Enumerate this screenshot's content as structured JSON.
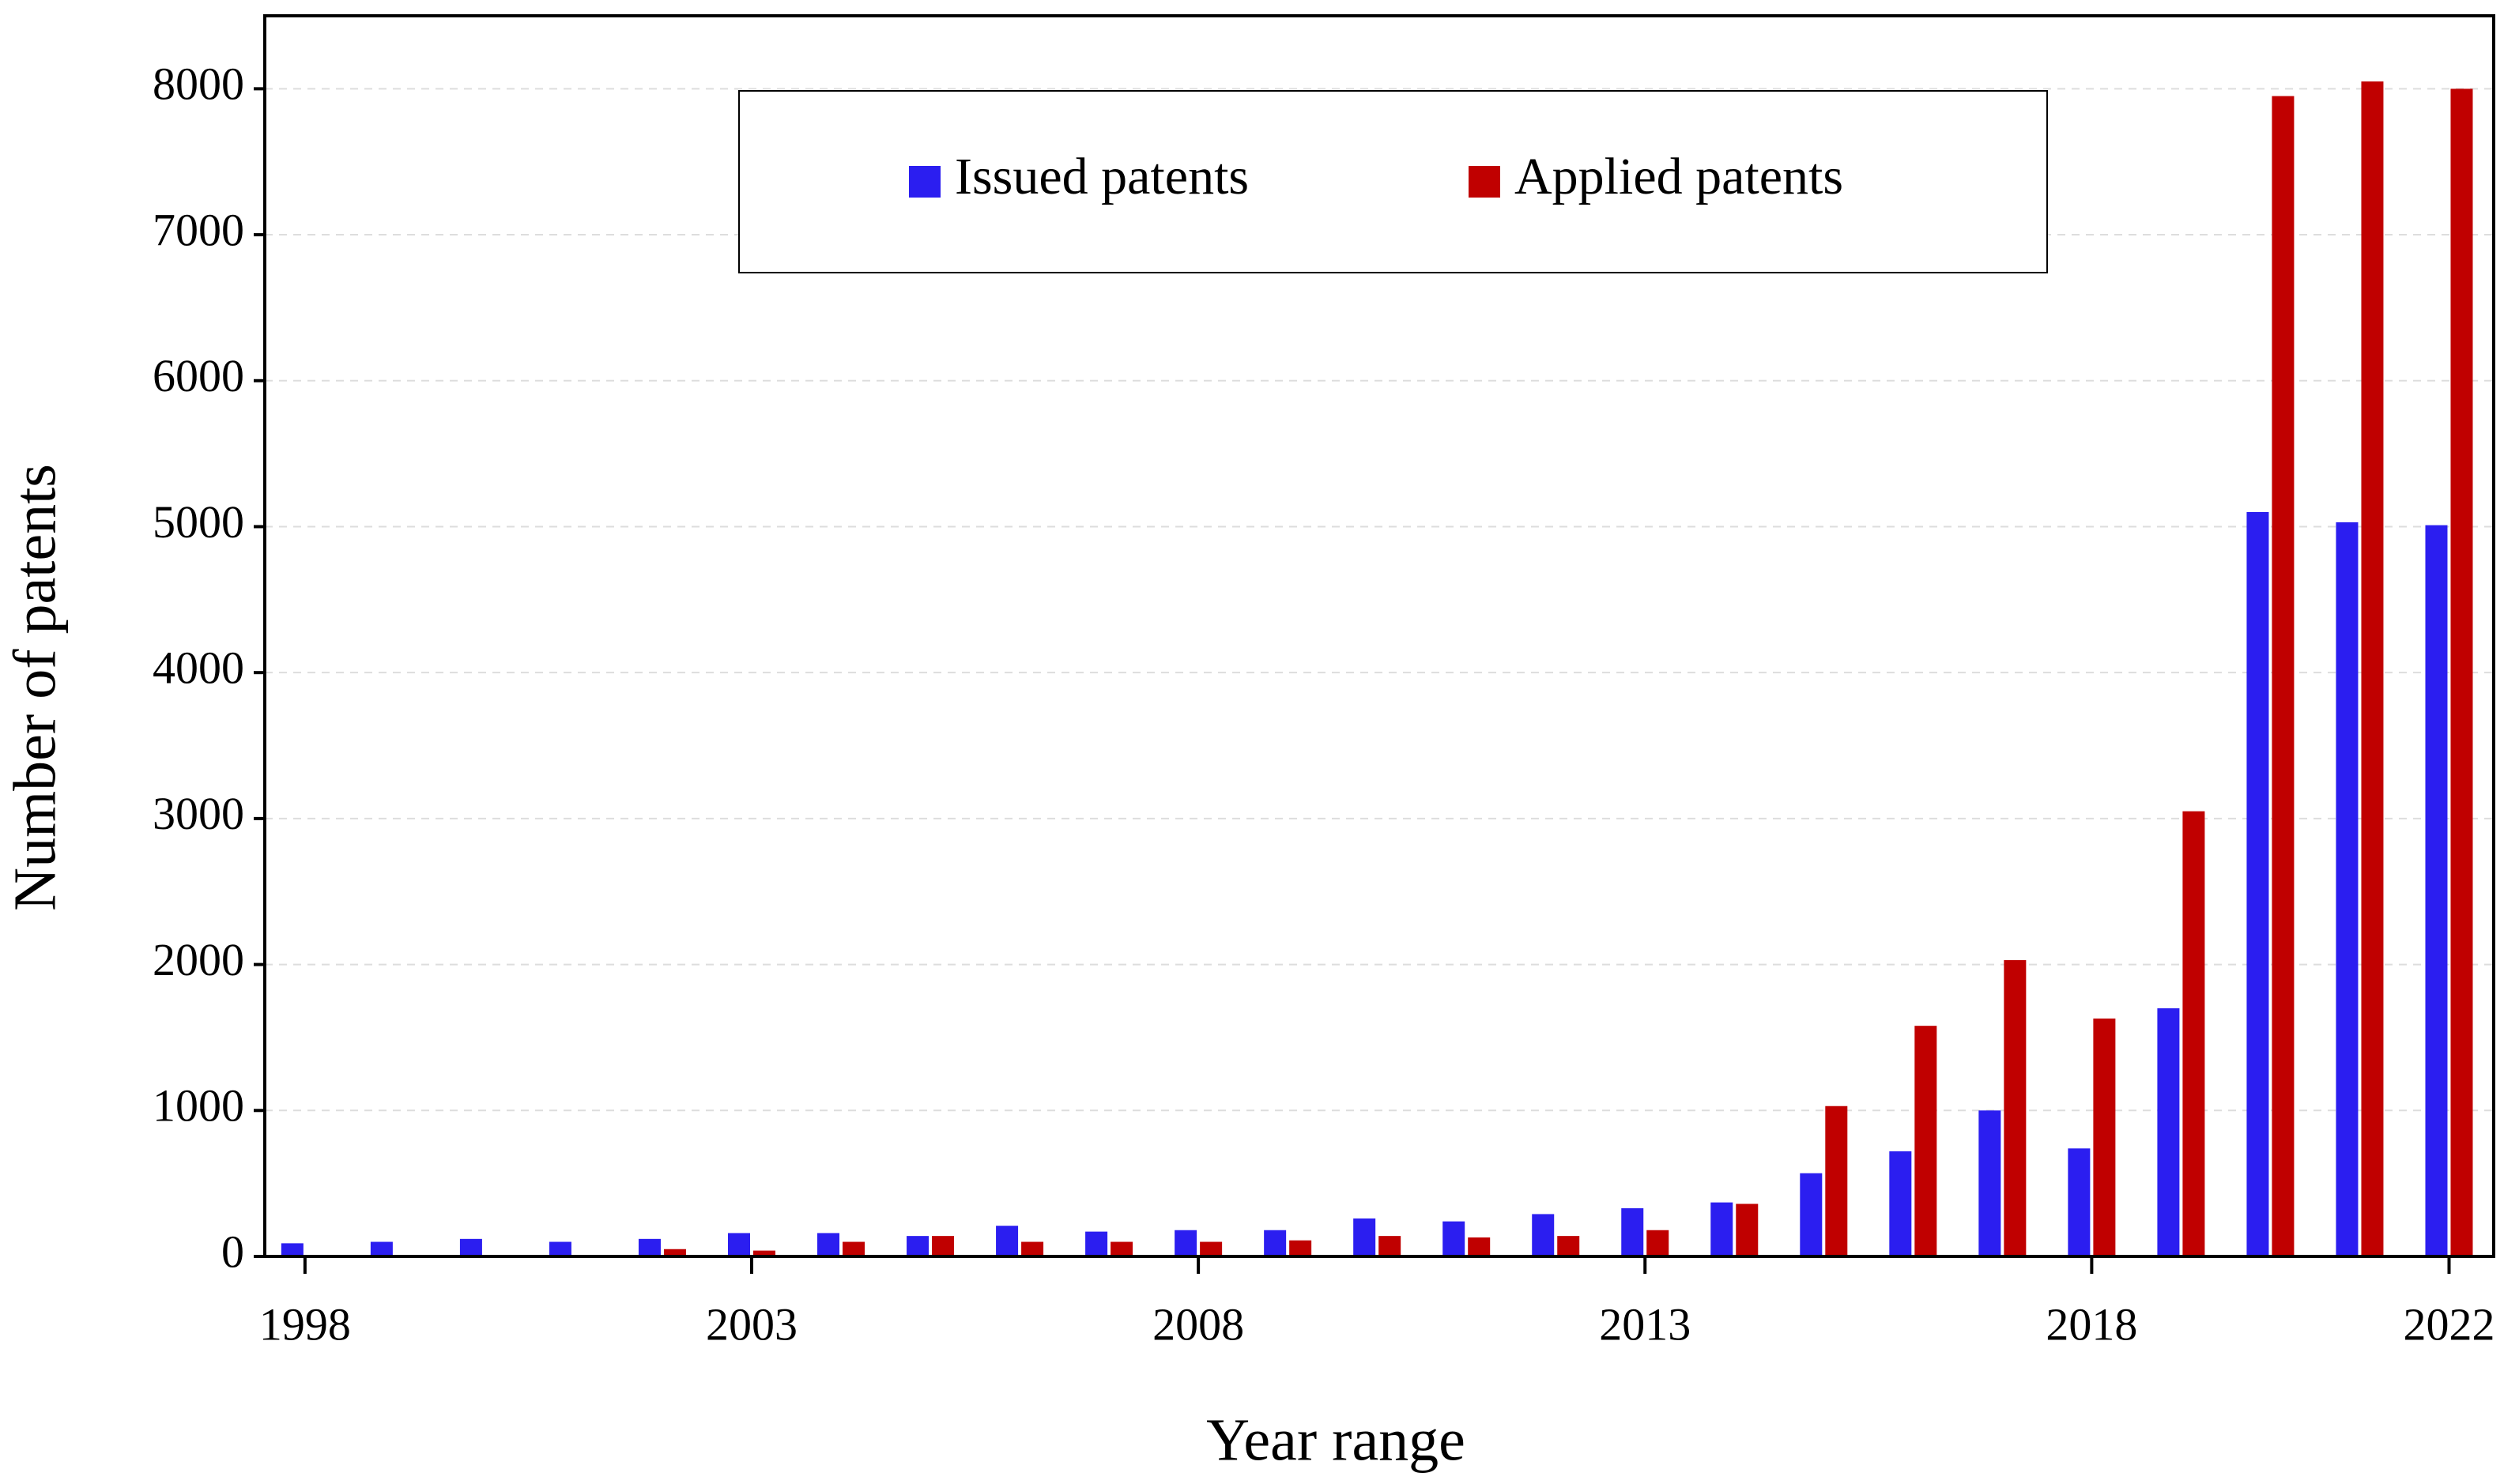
{
  "chart_data": {
    "type": "bar",
    "x_label": "Year range",
    "y_label": "Number of patents",
    "x": [
      1998,
      1999,
      2000,
      2001,
      2002,
      2003,
      2004,
      2005,
      2006,
      2007,
      2008,
      2009,
      2010,
      2011,
      2012,
      2013,
      2014,
      2015,
      2016,
      2017,
      2018,
      2019,
      2020,
      2021,
      2022
    ],
    "series": [
      {
        "name": "Issued patents",
        "color": "#2b1ef0",
        "values": [
          90,
          100,
          120,
          100,
          120,
          160,
          160,
          140,
          210,
          170,
          180,
          180,
          260,
          240,
          290,
          330,
          370,
          570,
          720,
          1000,
          740,
          1700,
          5100,
          5030,
          5010
        ]
      },
      {
        "name": "Applied patents",
        "color": "#c00000",
        "values": [
          0,
          0,
          0,
          0,
          50,
          40,
          100,
          140,
          100,
          100,
          100,
          110,
          140,
          130,
          140,
          180,
          360,
          1030,
          1580,
          2030,
          1630,
          3050,
          7950,
          8050,
          8000
        ]
      }
    ],
    "xlim": [
      1997.55,
      2022.5
    ],
    "xticks": [
      1998,
      2003,
      2008,
      2013,
      2018,
      2022
    ],
    "ylim": [
      0,
      8500
    ],
    "yticks": [
      0,
      1000,
      2000,
      3000,
      4000,
      5000,
      6000,
      7000,
      8000
    ],
    "grid": true,
    "legend": "top"
  }
}
